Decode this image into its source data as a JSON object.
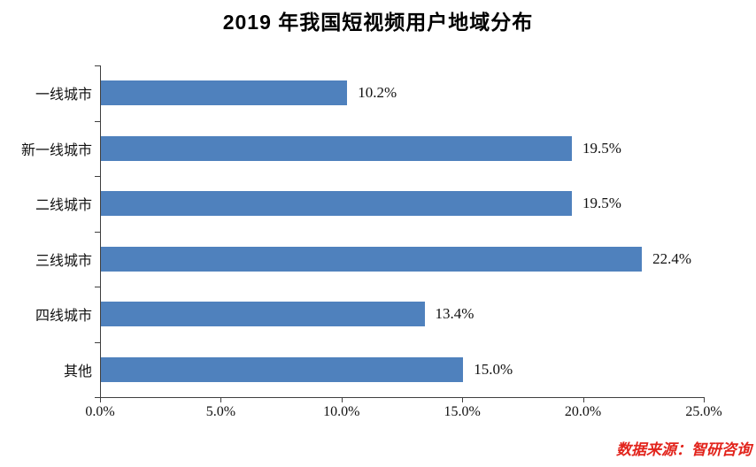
{
  "source_note": "数据来源：智研咨询",
  "colors": {
    "bar": "#4f81bd",
    "axis": "#3f3f3f",
    "title_text": "#000000",
    "source_text": "#e2241c",
    "background": "#ffffff"
  },
  "chart_data": {
    "type": "bar",
    "orientation": "horizontal",
    "title": "2019 年我国短视频用户地域分布",
    "categories": [
      "一线城市",
      "新一线城市",
      "二线城市",
      "三线城市",
      "四线城市",
      "其他"
    ],
    "values": [
      10.2,
      19.5,
      19.5,
      22.4,
      13.4,
      15.0
    ],
    "value_labels": [
      "10.2%",
      "19.5%",
      "19.5%",
      "22.4%",
      "13.4%",
      "15.0%"
    ],
    "xlabel": "",
    "ylabel": "",
    "xlim": [
      0,
      25
    ],
    "x_ticks": [
      0,
      5,
      10,
      15,
      20,
      25
    ],
    "x_tick_labels": [
      "0.0%",
      "5.0%",
      "10.0%",
      "15.0%",
      "20.0%",
      "25.0%"
    ],
    "grid": false,
    "legend": false,
    "bar_label_position": "right-of-bar"
  }
}
